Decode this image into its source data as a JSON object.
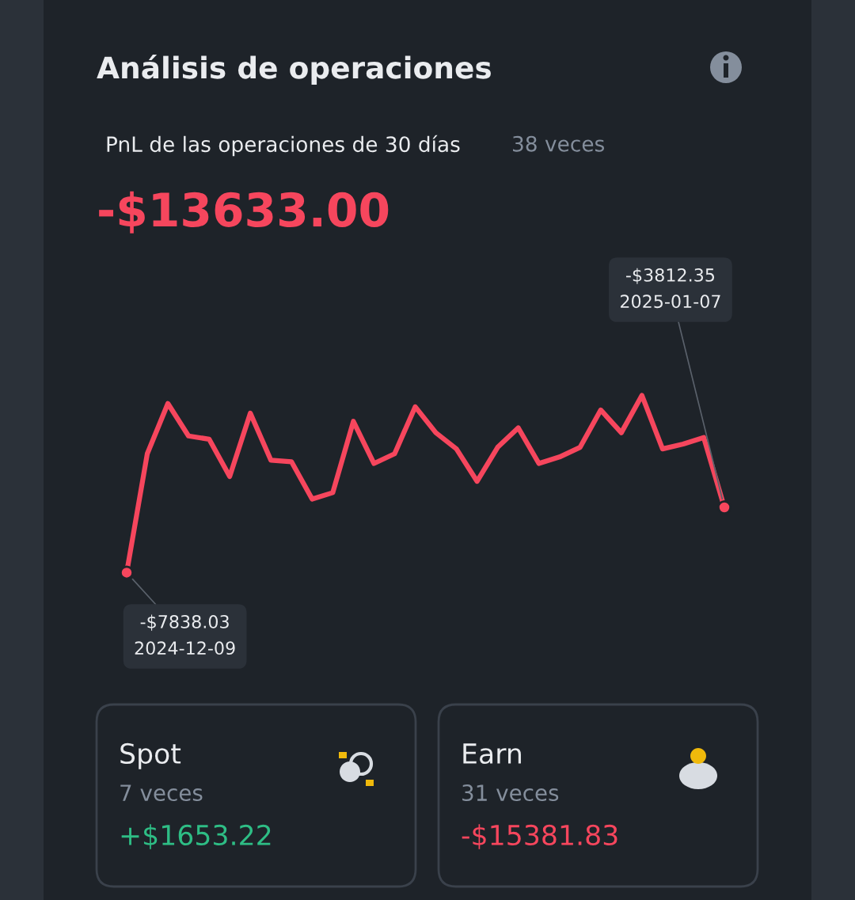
{
  "chart_data": {
    "type": "line",
    "title": "Análisis de operaciones",
    "subtitle": "PnL de las operaciones de 30 días",
    "categories": [
      null,
      null,
      null,
      null,
      null,
      null,
      null,
      null,
      null,
      null,
      null,
      null,
      null,
      null,
      null,
      null,
      null,
      null,
      null,
      null,
      null,
      null,
      null,
      null,
      null,
      null,
      null,
      null,
      null,
      null
    ],
    "series": [
      {
        "color": "#f6465d",
        "values": [
          -7838.03,
          -500,
          2600,
          600,
          400,
          -1900,
          2000,
          -900,
          -1000,
          -3300,
          -2900,
          1500,
          -1100,
          -500,
          2400,
          800,
          -200,
          -2200,
          -100,
          1100,
          -1100,
          -700,
          -100,
          2200,
          800,
          3100,
          -200,
          100,
          500,
          -3812.35
        ],
        "value_labels": [
          "-$7838.03\n2024-12-09",
          null,
          null,
          null,
          null,
          null,
          null,
          null,
          null,
          null,
          null,
          null,
          null,
          null,
          null,
          null,
          null,
          null,
          null,
          null,
          null,
          null,
          null,
          null,
          null,
          null,
          null,
          null,
          null,
          "-$3812.35\n2025-01-07"
        ]
      }
    ],
    "annotations": [
      "38 veces",
      "-$13633.00",
      "Spot",
      "7 veces",
      "+$1653.22",
      "Earn",
      "31 veces",
      "-$15381.83"
    ]
  }
}
